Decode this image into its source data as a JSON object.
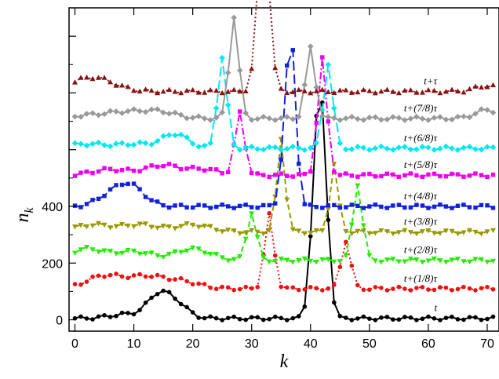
{
  "chart_data": {
    "type": "line",
    "title": "",
    "xlabel": "k",
    "ylabel": "n_k",
    "ylabel_main": "n",
    "ylabel_sub": "k",
    "xlim": [
      -1,
      72
    ],
    "ylim": [
      -40,
      1100
    ],
    "x_ticks": [
      0,
      10,
      20,
      30,
      40,
      50,
      60,
      70
    ],
    "y_ticks": [
      0,
      200,
      400
    ],
    "grid": false,
    "series": [
      {
        "name": "t",
        "color": "#000000",
        "marker": "circle",
        "dash": "solid",
        "offset": 0,
        "baseline": 5,
        "bumps": [
          [
            14,
            70,
            1.8
          ],
          [
            17,
            55,
            2.0
          ],
          [
            9,
            15,
            3.0
          ]
        ],
        "peaks": [
          [
            41,
            430,
            0.9
          ],
          [
            42,
            510,
            0.9
          ],
          [
            43,
            40,
            0.7
          ],
          [
            40,
            20,
            0.6
          ]
        ]
      },
      {
        "name": "t+(1/8)τ",
        "color": "#ee1111",
        "marker": "circle",
        "dash": "dotted",
        "offset": 100,
        "baseline": 10,
        "bumps": [
          [
            5,
            45,
            3.0
          ],
          [
            12,
            40,
            3.0
          ],
          [
            18,
            25,
            3.0
          ]
        ],
        "peaks": [
          [
            33,
            260,
            0.8
          ],
          [
            46,
            170,
            0.8
          ]
        ]
      },
      {
        "name": "t+(2/8)τ",
        "color": "#22ee00",
        "marker": "triangle-down",
        "dash": "dashed",
        "offset": 200,
        "baseline": 10,
        "bumps": [
          [
            2,
            40,
            3.0
          ],
          [
            10,
            30,
            3.0
          ],
          [
            20,
            40,
            3.0
          ]
        ],
        "peaks": [
          [
            30,
            170,
            0.8
          ],
          [
            48,
            270,
            0.8
          ]
        ]
      },
      {
        "name": "t+(3/8)τ",
        "color": "#999900",
        "marker": "triangle-down",
        "dash": "dashed",
        "offset": 300,
        "baseline": 10,
        "bumps": [
          [
            3,
            25,
            3.0
          ],
          [
            11,
            25,
            3.0
          ],
          [
            20,
            25,
            3.0
          ]
        ],
        "peaks": [
          [
            35,
            330,
            0.7
          ],
          [
            44,
            240,
            0.7
          ]
        ]
      },
      {
        "name": "t+(4/8)τ",
        "color": "#1122dd",
        "marker": "square",
        "dash": "longdash",
        "offset": 400,
        "baseline": 0,
        "bumps": [
          [
            9,
            80,
            2.5
          ],
          [
            5,
            20,
            2.0
          ]
        ],
        "peaks": [
          [
            36,
            350,
            0.8
          ],
          [
            37,
            390,
            0.7
          ]
        ]
      },
      {
        "name": "t+(5/8)τ",
        "color": "#ee00ee",
        "marker": "square",
        "dash": "dashdot",
        "offset": 500,
        "baseline": 10,
        "bumps": [
          [
            6,
            20,
            3.0
          ],
          [
            15,
            35,
            3.0
          ],
          [
            22,
            20,
            2.5
          ]
        ],
        "peaks": [
          [
            28,
            220,
            0.8
          ],
          [
            42,
            410,
            0.8
          ]
        ]
      },
      {
        "name": "t+(6/8)τ",
        "color": "#00e8f0",
        "marker": "diamond",
        "dash": "longdash",
        "offset": 600,
        "baseline": 5,
        "bumps": [
          [
            2,
            15,
            3.0
          ],
          [
            10,
            15,
            3.0
          ],
          [
            17,
            50,
            2.2
          ]
        ],
        "peaks": [
          [
            25,
            320,
            0.8
          ],
          [
            43,
            300,
            0.8
          ]
        ]
      },
      {
        "name": "t+(7/8)τ",
        "color": "#999999",
        "marker": "diamond",
        "dash": "solid",
        "offset": 700,
        "baseline": 10,
        "bumps": [
          [
            2,
            10,
            3.0
          ],
          [
            8,
            20,
            3.0
          ],
          [
            14,
            25,
            3.0
          ],
          [
            70,
            30,
            2.0
          ]
        ],
        "peaks": [
          [
            27,
            360,
            0.8
          ],
          [
            40,
            250,
            0.8
          ]
        ]
      },
      {
        "name": "t+τ",
        "color": "#881111",
        "marker": "triangle-up",
        "dash": "dotted",
        "offset": 800,
        "baseline": 5,
        "bumps": [
          [
            3,
            50,
            3.5
          ],
          [
            70,
            20,
            2.0
          ]
        ],
        "peaks": [
          [
            32,
            580,
            1.0
          ]
        ]
      }
    ]
  }
}
